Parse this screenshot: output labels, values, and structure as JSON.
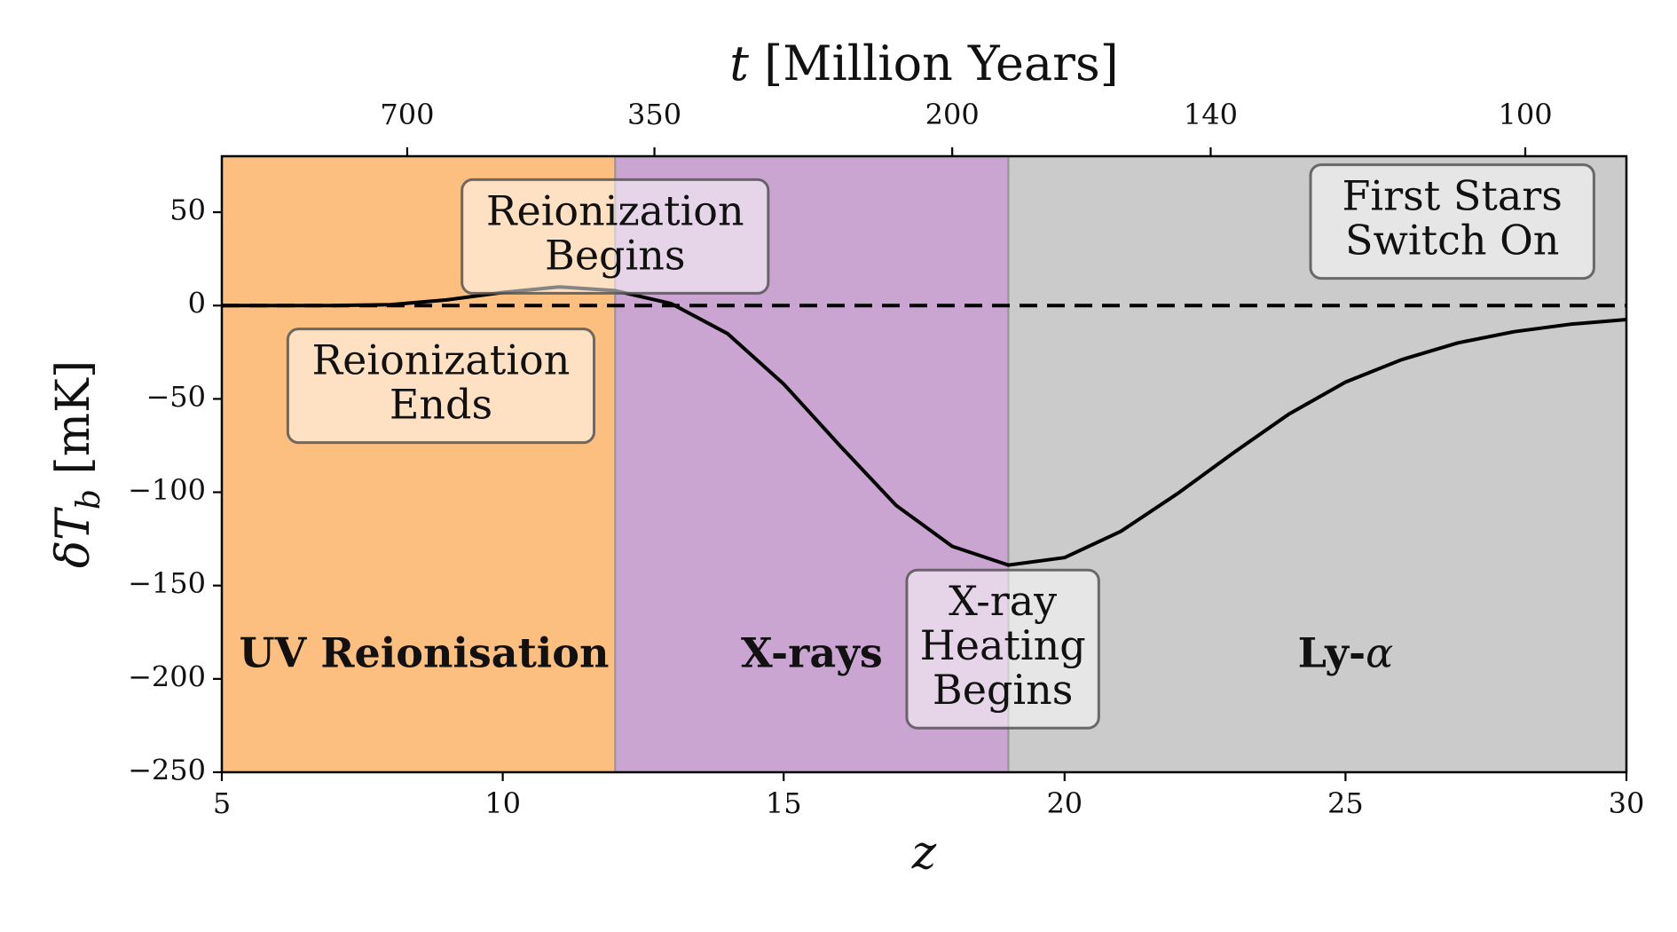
{
  "chart_data": {
    "type": "line",
    "xlabel": "z",
    "ylabel": "δT_b [mK]",
    "ylabel_parts": {
      "symbol": "δT",
      "subscript": "b",
      "unit": " [mK]"
    },
    "top_axis_label": "t [Million Years]",
    "top_axis_label_parts": {
      "symbol": "t",
      "unit": " [Million Years]"
    },
    "xlim": [
      5,
      30
    ],
    "ylim": [
      -250,
      80
    ],
    "x_ticks": [
      5,
      10,
      15,
      20,
      25,
      30
    ],
    "y_ticks": [
      50,
      0,
      -50,
      -100,
      -150,
      -200,
      -250
    ],
    "y_tick_labels": [
      "50",
      "0",
      "−50",
      "−100",
      "−150",
      "−200",
      "−250"
    ],
    "top_ticks": [
      {
        "label": "700",
        "z": 8.3
      },
      {
        "label": "350",
        "z": 12.7
      },
      {
        "label": "200",
        "z": 18.0
      },
      {
        "label": "140",
        "z": 22.6
      },
      {
        "label": "100",
        "z": 28.2
      }
    ],
    "series": [
      {
        "x": [
          5,
          6,
          7,
          8,
          9,
          10,
          11,
          12,
          13,
          14,
          15,
          16,
          17,
          18,
          19,
          20,
          21,
          22,
          23,
          24,
          25,
          26,
          27,
          28,
          29,
          30
        ],
        "y": [
          0,
          0,
          0,
          0.5,
          3,
          7,
          10,
          8,
          1,
          -15,
          -42,
          -75,
          -107,
          -129,
          -139,
          -135,
          -121,
          -101,
          -79,
          -58,
          -41,
          -29,
          -20,
          -14,
          -10,
          -7.5
        ],
        "color": "#000000"
      }
    ],
    "reference_line": {
      "y": 0,
      "style": "dashed",
      "color": "#000000"
    },
    "regions": [
      {
        "label": "UV Reionisation",
        "x0": 5,
        "x1": 12,
        "color": "#fdbf80",
        "label_x": 8.6,
        "label_y": -188
      },
      {
        "label": "X-rays",
        "x0": 12,
        "x1": 19,
        "color": "#cba5d2",
        "label_x": 15.5,
        "label_y": -188
      },
      {
        "label_main": "Ly-",
        "label_greek": "α",
        "x0": 19,
        "x1": 30,
        "color": "#cbcbcb",
        "label_x": 25,
        "label_y": -188
      }
    ],
    "annotations": [
      {
        "lines": [
          "Reionization",
          "Begins"
        ],
        "x": 12.0,
        "y": 37
      },
      {
        "lines": [
          "Reionization",
          "Ends"
        ],
        "x": 8.9,
        "y": -43
      },
      {
        "lines": [
          "First Stars",
          "Switch On"
        ],
        "x": 26.9,
        "y": 45
      },
      {
        "lines": [
          "X-ray",
          "Heating",
          "Begins"
        ],
        "x": 18.9,
        "y": -184
      }
    ],
    "grid": false,
    "legend": "none"
  }
}
